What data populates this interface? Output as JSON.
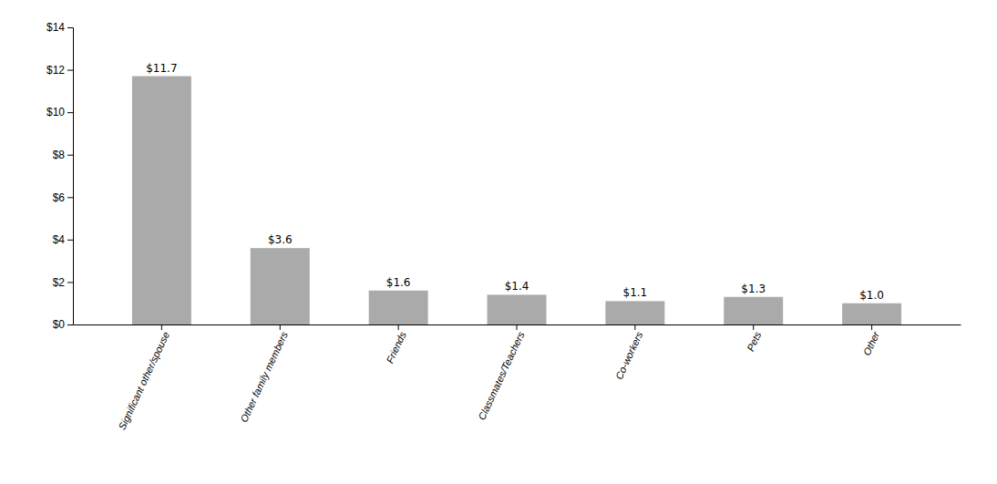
{
  "chart_data": {
    "type": "bar",
    "categories": [
      "Significant other/spouse",
      "Other family members",
      "Friends",
      "Classmates/Teachers",
      "Co-workers",
      "Pets",
      "Other"
    ],
    "values": [
      11.7,
      3.6,
      1.6,
      1.4,
      1.1,
      1.3,
      1.0
    ],
    "value_labels": [
      "$11.7",
      "$3.6",
      "$1.6",
      "$1.4",
      "$1.1",
      "$1.3",
      "$1.0"
    ],
    "data_labels": true,
    "color": "#aaaaaa",
    "ylim": [
      0,
      14
    ],
    "yticks": [
      {
        "value": 0,
        "label": "$0"
      },
      {
        "value": 2,
        "label": "$2"
      },
      {
        "value": 4,
        "label": "$4"
      },
      {
        "value": 6,
        "label": "$6"
      },
      {
        "value": 8,
        "label": "$8"
      },
      {
        "value": 10,
        "label": "$10"
      },
      {
        "value": 12,
        "label": "$12"
      },
      {
        "value": 14,
        "label": "$14"
      }
    ],
    "grid": false
  }
}
